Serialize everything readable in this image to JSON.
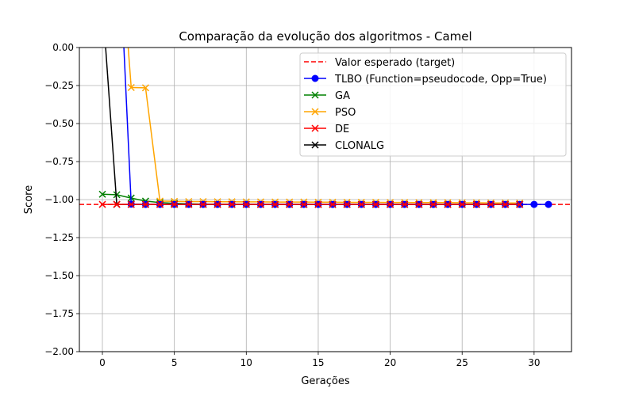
{
  "chart_data": {
    "type": "line",
    "title": "Comparação da evolução dos algoritmos - Camel",
    "xlabel": "Gerações",
    "ylabel": "Score",
    "xlim": [
      -1.6,
      32.6
    ],
    "ylim": [
      -2.0,
      0.0
    ],
    "xticks": [
      0,
      5,
      10,
      15,
      20,
      25,
      30
    ],
    "xtick_labels": [
      "0",
      "5",
      "10",
      "15",
      "20",
      "25",
      "30"
    ],
    "yticks": [
      0.0,
      -0.25,
      -0.5,
      -0.75,
      -1.0,
      -1.25,
      -1.5,
      -1.75,
      -2.0
    ],
    "ytick_labels": [
      "0.00",
      "−0.25",
      "−0.50",
      "−0.75",
      "−1.00",
      "−1.25",
      "−1.50",
      "−1.75",
      "−2.00"
    ],
    "grid": true,
    "legend_position": "top-right",
    "target": {
      "name": "Valor esperado (target)",
      "value": -1.0316,
      "color": "#ff0000",
      "style": "dashed"
    },
    "series": [
      {
        "name": "TLBO (Function=pseudocode, Opp=True)",
        "color": "#0000ff",
        "marker": "circle",
        "x": [
          1,
          2,
          3,
          4,
          5,
          6,
          7,
          8,
          9,
          10,
          11,
          12,
          13,
          14,
          15,
          16,
          17,
          18,
          19,
          20,
          21,
          22,
          23,
          24,
          25,
          26,
          27,
          28,
          29,
          30,
          31
        ],
        "y": [
          1.0,
          -1.03,
          -1.0316,
          -1.0316,
          -1.0316,
          -1.0316,
          -1.0316,
          -1.0316,
          -1.0316,
          -1.0316,
          -1.0316,
          -1.0316,
          -1.0316,
          -1.0316,
          -1.0316,
          -1.0316,
          -1.0316,
          -1.0316,
          -1.0316,
          -1.0316,
          -1.0316,
          -1.0316,
          -1.0316,
          -1.0316,
          -1.0316,
          -1.0316,
          -1.0316,
          -1.0316,
          -1.0316,
          -1.0316,
          -1.0316
        ]
      },
      {
        "name": "GA",
        "color": "#008000",
        "marker": "x",
        "x": [
          0,
          1,
          2,
          3,
          4,
          5,
          6,
          7,
          8,
          9,
          10,
          11,
          12,
          13,
          14,
          15,
          16,
          17,
          18,
          19,
          20,
          21,
          22,
          23,
          24,
          25,
          26,
          27,
          28,
          29
        ],
        "y": [
          -0.965,
          -0.968,
          -0.99,
          -1.01,
          -1.02,
          -1.025,
          -1.028,
          -1.03,
          -1.031,
          -1.031,
          -1.031,
          -1.0316,
          -1.0316,
          -1.0316,
          -1.0316,
          -1.0316,
          -1.0316,
          -1.0316,
          -1.0316,
          -1.0316,
          -1.0316,
          -1.0316,
          -1.0316,
          -1.0316,
          -1.0316,
          -1.0316,
          -1.0316,
          -1.0316,
          -1.0316,
          -1.0316
        ]
      },
      {
        "name": "PSO",
        "color": "#ffa500",
        "marker": "x",
        "x": [
          1,
          2,
          3,
          4,
          5,
          6,
          7,
          8,
          9,
          10,
          11,
          12,
          13,
          14,
          15,
          16,
          17,
          18,
          19,
          20,
          21,
          22,
          23,
          24,
          25,
          26,
          27,
          28,
          29
        ],
        "y": [
          1.0,
          -0.263,
          -0.265,
          -1.01,
          -1.012,
          -1.013,
          -1.013,
          -1.014,
          -1.014,
          -1.015,
          -1.015,
          -1.016,
          -1.016,
          -1.016,
          -1.017,
          -1.017,
          -1.018,
          -1.018,
          -1.018,
          -1.019,
          -1.019,
          -1.02,
          -1.02,
          -1.02,
          -1.021,
          -1.021,
          -1.022,
          -1.022,
          -1.023
        ]
      },
      {
        "name": "DE",
        "color": "#ff0000",
        "marker": "x",
        "x": [
          0,
          1,
          2,
          3,
          4,
          5,
          6,
          7,
          8,
          9,
          10,
          11,
          12,
          13,
          14,
          15,
          16,
          17,
          18,
          19,
          20,
          21,
          22,
          23,
          24,
          25,
          26,
          27,
          28,
          29
        ],
        "y": [
          -1.0316,
          -1.0316,
          -1.0316,
          -1.0316,
          -1.0316,
          -1.0316,
          -1.0316,
          -1.0316,
          -1.0316,
          -1.0316,
          -1.0316,
          -1.0316,
          -1.0316,
          -1.0316,
          -1.0316,
          -1.0316,
          -1.0316,
          -1.0316,
          -1.0316,
          -1.0316,
          -1.0316,
          -1.0316,
          -1.0316,
          -1.0316,
          -1.0316,
          -1.0316,
          -1.0316,
          -1.0316,
          -1.0316,
          -1.0316
        ]
      },
      {
        "name": "CLONALG",
        "color": "#000000",
        "marker": "x",
        "x": [
          0,
          1,
          2,
          3,
          4,
          5,
          6,
          7,
          8,
          9,
          10,
          11,
          12,
          13,
          14,
          15,
          16,
          17,
          18,
          19,
          20,
          21,
          22,
          23,
          24,
          25,
          26,
          27,
          28,
          29
        ],
        "y": [
          0.3,
          -1.0316,
          -1.0316,
          -1.0316,
          -1.0316,
          -1.0316,
          -1.0316,
          -1.0316,
          -1.0316,
          -1.0316,
          -1.0316,
          -1.0316,
          -1.0316,
          -1.0316,
          -1.0316,
          -1.0316,
          -1.0316,
          -1.0316,
          -1.0316,
          -1.0316,
          -1.0316,
          -1.0316,
          -1.0316,
          -1.0316,
          -1.0316,
          -1.0316,
          -1.0316,
          -1.0316,
          -1.0316,
          -1.0316
        ]
      }
    ]
  }
}
